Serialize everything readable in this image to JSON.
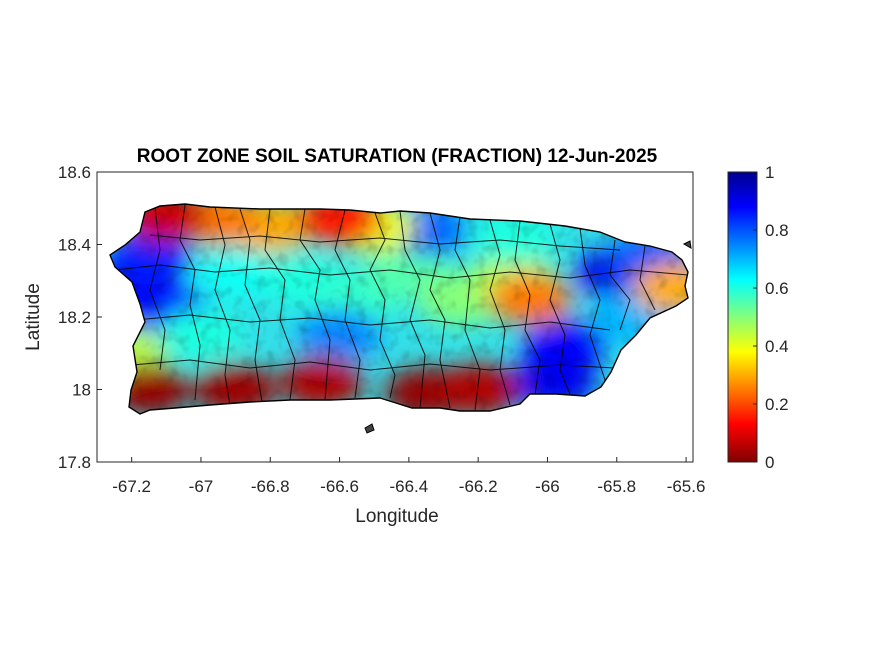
{
  "title": "ROOT ZONE SOIL SATURATION (FRACTION) 12-Jun-2025",
  "xlabel": "Longitude",
  "ylabel": "Latitude",
  "xticks": [
    "-67.2",
    "-67",
    "-66.8",
    "-66.6",
    "-66.4",
    "-66.2",
    "-66",
    "-65.8",
    "-65.6"
  ],
  "yticks": [
    "18.6",
    "18.4",
    "18.2",
    "18",
    "17.8"
  ],
  "colorbar_ticks": [
    "1",
    "0.8",
    "0.6",
    "0.4",
    "0.2",
    "0"
  ],
  "colormap": "jet",
  "colormap_stops": [
    "#00008f",
    "#0000ff",
    "#00ffff",
    "#ffff00",
    "#ff0000",
    "#800000"
  ],
  "outline_color": "#000000",
  "chart_data": {
    "type": "heatmap",
    "title": "ROOT ZONE SOIL SATURATION (FRACTION) 12-Jun-2025",
    "xlabel": "Longitude",
    "ylabel": "Latitude",
    "xlim": [
      -67.3,
      -65.58
    ],
    "ylim": [
      17.8,
      18.6
    ],
    "clim": [
      0,
      1
    ],
    "colormap": "jet",
    "regions": [
      {
        "lon": -67.2,
        "lat": 18.28,
        "value": 0.9
      },
      {
        "lon": -67.15,
        "lat": 18.36,
        "value": 0.85
      },
      {
        "lon": -67.1,
        "lat": 18.22,
        "value": 0.88
      },
      {
        "lon": -67.22,
        "lat": 18.1,
        "value": 0.45
      },
      {
        "lon": -67.0,
        "lat": 18.15,
        "value": 0.6
      },
      {
        "lon": -66.9,
        "lat": 18.32,
        "value": 0.62
      },
      {
        "lon": -66.7,
        "lat": 18.3,
        "value": 0.6
      },
      {
        "lon": -66.55,
        "lat": 18.25,
        "value": 0.58
      },
      {
        "lon": -66.6,
        "lat": 18.15,
        "value": 0.75
      },
      {
        "lon": -66.4,
        "lat": 18.32,
        "value": 0.55
      },
      {
        "lon": -66.25,
        "lat": 18.25,
        "value": 0.5
      },
      {
        "lon": -66.1,
        "lat": 18.3,
        "value": 0.45
      },
      {
        "lon": -66.1,
        "lat": 18.42,
        "value": 0.6
      },
      {
        "lon": -66.35,
        "lat": 18.44,
        "value": 0.78
      },
      {
        "lon": -65.95,
        "lat": 18.12,
        "value": 0.88
      },
      {
        "lon": -65.98,
        "lat": 18.02,
        "value": 0.9
      },
      {
        "lon": -65.8,
        "lat": 18.32,
        "value": 0.9
      },
      {
        "lon": -65.7,
        "lat": 18.36,
        "value": 0.8
      },
      {
        "lon": -65.75,
        "lat": 18.2,
        "value": 0.7
      },
      {
        "lon": -66.8,
        "lat": 18.45,
        "value": 0.3
      },
      {
        "lon": -66.95,
        "lat": 18.47,
        "value": 0.25
      },
      {
        "lon": -66.5,
        "lat": 18.45,
        "value": 0.4
      },
      {
        "lon": -67.1,
        "lat": 18.48,
        "value": 0.08
      },
      {
        "lon": -66.6,
        "lat": 18.47,
        "value": 0.15
      },
      {
        "lon": -67.15,
        "lat": 18.0,
        "value": 0.02
      },
      {
        "lon": -66.9,
        "lat": 18.0,
        "value": 0.03
      },
      {
        "lon": -66.65,
        "lat": 18.02,
        "value": 0.05
      },
      {
        "lon": -66.35,
        "lat": 17.99,
        "value": 0.02
      },
      {
        "lon": -66.2,
        "lat": 18.0,
        "value": 0.05
      },
      {
        "lon": -66.05,
        "lat": 18.25,
        "value": 0.25
      },
      {
        "lon": -65.63,
        "lat": 18.28,
        "value": 0.3
      }
    ]
  }
}
